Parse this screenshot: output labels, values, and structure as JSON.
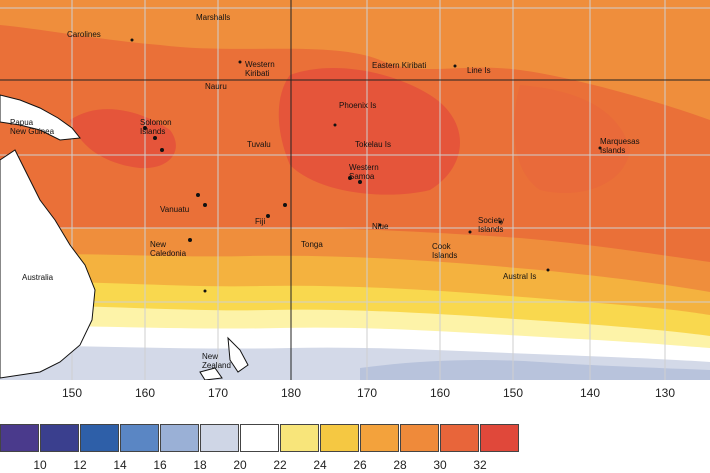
{
  "places": [
    {
      "id": "marshalls",
      "lines": [
        "Marshalls"
      ]
    },
    {
      "id": "carolines",
      "lines": [
        "Carolines"
      ]
    },
    {
      "id": "western-kiribati",
      "lines": [
        "Western",
        "Kiribati"
      ]
    },
    {
      "id": "eastern-kiribati",
      "lines": [
        "Eastern Kiribati"
      ]
    },
    {
      "id": "line-is",
      "lines": [
        "Line Is"
      ]
    },
    {
      "id": "png",
      "lines": [
        "Papua",
        "New Guinea"
      ]
    },
    {
      "id": "nauru",
      "lines": [
        "Nauru"
      ]
    },
    {
      "id": "tokelau-phoenix",
      "lines": [
        "Phoenix Is"
      ]
    },
    {
      "id": "solomon",
      "lines": [
        "Solomon",
        "Islands"
      ]
    },
    {
      "id": "tuvalu",
      "lines": [
        "Tuvalu"
      ]
    },
    {
      "id": "tokelau",
      "lines": [
        "Tokelau Is"
      ]
    },
    {
      "id": "marquesas",
      "lines": [
        "Marquesas",
        "Islands"
      ]
    },
    {
      "id": "western-samoa",
      "lines": [
        "Western",
        "Samoa"
      ]
    },
    {
      "id": "vanuatu",
      "lines": [
        "Vanuatu"
      ]
    },
    {
      "id": "fiji",
      "lines": [
        "Fiji"
      ]
    },
    {
      "id": "niue",
      "lines": [
        "Niue"
      ]
    },
    {
      "id": "society",
      "lines": [
        "Society",
        "Islands"
      ]
    },
    {
      "id": "new-caledonia",
      "lines": [
        "New",
        "Caledonia"
      ]
    },
    {
      "id": "tonga",
      "lines": [
        "Tonga"
      ]
    },
    {
      "id": "cook",
      "lines": [
        "Cook",
        "Islands"
      ]
    },
    {
      "id": "australia",
      "lines": [
        "Australia"
      ]
    },
    {
      "id": "austral",
      "lines": [
        "Austral Is"
      ]
    },
    {
      "id": "new-zealand",
      "lines": [
        "New",
        "Zealand"
      ]
    }
  ],
  "longitude_labels": [
    "150",
    "160",
    "170",
    "180",
    "170",
    "160",
    "150",
    "140",
    "130"
  ],
  "legend": {
    "colors": [
      "#4a3a8c",
      "#3a3f8e",
      "#2e5fa8",
      "#5a86c4",
      "#9ab0d6",
      "#cfd6e6",
      "#ffffff",
      "#f8e57a",
      "#f5c842",
      "#f3a23c",
      "#ef8a3a",
      "#e8653a",
      "#e0483a"
    ],
    "labels": [
      "10",
      "12",
      "14",
      "16",
      "18",
      "20",
      "22",
      "24",
      "26",
      "28",
      "30",
      "32"
    ]
  },
  "colors": {
    "band_warm_32": "#e5553a",
    "band_30": "#ea7038",
    "band_28": "#ef8e3c",
    "band_26": "#f4b23f",
    "band_24": "#f9d84e",
    "band_22": "#fdf3a8",
    "band_20": "#ffffff",
    "band_18": "#d3d9e8",
    "land": "#ffffff"
  }
}
